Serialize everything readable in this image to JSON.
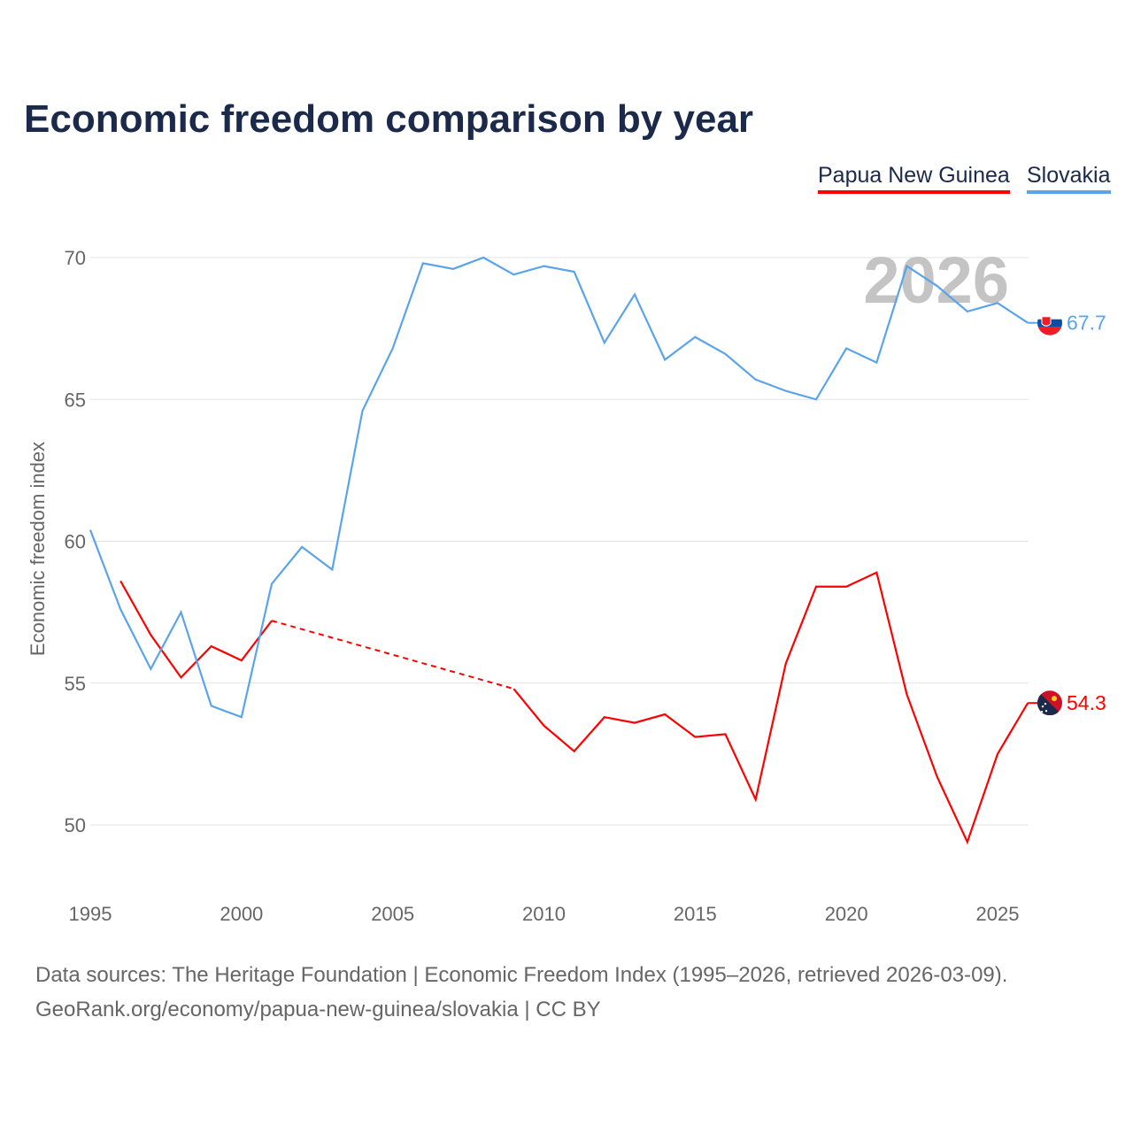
{
  "chart_data": {
    "type": "line",
    "title": "Economic freedom comparison by year",
    "xlabel": "",
    "ylabel": "Economic freedom index",
    "xlim": [
      1995,
      2026
    ],
    "ylim": [
      48,
      71.5
    ],
    "xticks": [
      1995,
      2000,
      2005,
      2010,
      2015,
      2020,
      2025
    ],
    "yticks": [
      50,
      55,
      60,
      65,
      70
    ],
    "grid": true,
    "legend_position": "top-right",
    "year_watermark": "2026",
    "series": [
      {
        "name": "Papua New Guinea",
        "color": "#ff0000",
        "x": [
          1996,
          1997,
          1998,
          1999,
          2000,
          2001,
          2009,
          2010,
          2011,
          2012,
          2013,
          2014,
          2015,
          2016,
          2017,
          2018,
          2019,
          2020,
          2021,
          2022,
          2023,
          2024,
          2025,
          2026
        ],
        "values": [
          58.6,
          56.7,
          55.2,
          56.3,
          55.8,
          57.2,
          54.8,
          53.5,
          52.6,
          53.8,
          53.6,
          53.9,
          53.1,
          53.2,
          50.9,
          55.7,
          58.4,
          58.4,
          58.9,
          54.6,
          51.7,
          49.4,
          52.5,
          54.3
        ],
        "gap_after": 2001,
        "end_label": "54.3"
      },
      {
        "name": "Slovakia",
        "color": "#5aa4ea",
        "x": [
          1995,
          1996,
          1997,
          1998,
          1999,
          2000,
          2001,
          2002,
          2003,
          2004,
          2005,
          2006,
          2007,
          2008,
          2009,
          2010,
          2011,
          2012,
          2013,
          2014,
          2015,
          2016,
          2017,
          2018,
          2019,
          2020,
          2021,
          2022,
          2023,
          2024,
          2025,
          2026
        ],
        "values": [
          60.4,
          57.6,
          55.5,
          57.5,
          54.2,
          53.8,
          58.5,
          59.8,
          59.0,
          64.6,
          66.8,
          69.8,
          69.6,
          70.0,
          69.4,
          69.7,
          69.5,
          67.0,
          68.7,
          66.4,
          67.2,
          66.6,
          65.7,
          65.3,
          65.0,
          66.8,
          66.3,
          69.7,
          69.0,
          68.1,
          68.4,
          67.7
        ],
        "end_label": "67.7"
      }
    ]
  },
  "footer": {
    "sources": "Data sources: The Heritage Foundation | Economic Freedom Index (1995–2026, retrieved 2026-03-09).",
    "credit": "GeoRank.org/economy/papua-new-guinea/slovakia | CC BY"
  }
}
